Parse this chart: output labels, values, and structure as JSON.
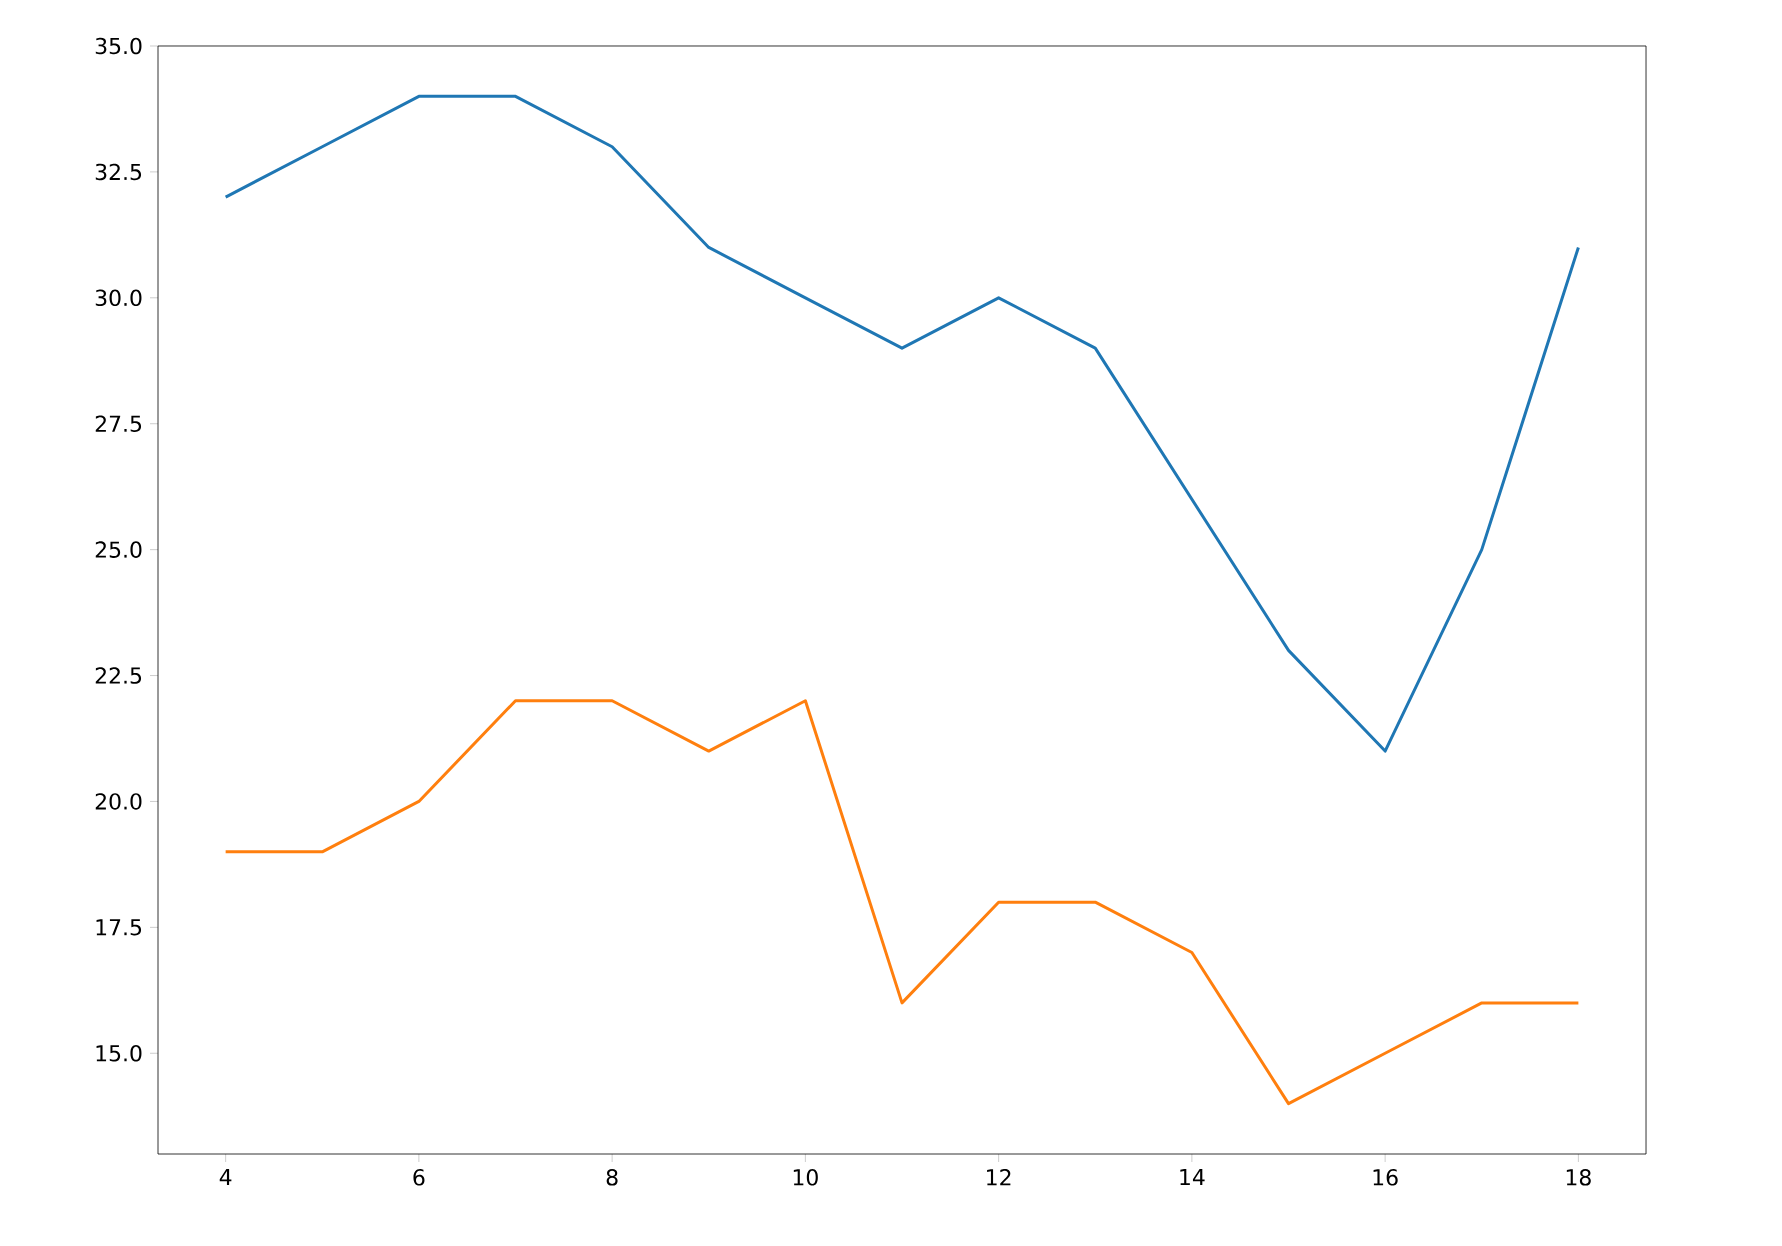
{
  "chart_data": {
    "type": "line",
    "x": [
      4,
      5,
      6,
      7,
      8,
      9,
      10,
      11,
      12,
      13,
      14,
      15,
      16,
      17,
      18
    ],
    "series": [
      {
        "color": "#1f77b4",
        "values": [
          32,
          33,
          34,
          34,
          33,
          31,
          30,
          29,
          30,
          29,
          26,
          23,
          21,
          25,
          31
        ]
      },
      {
        "color": "#ff7f0e",
        "values": [
          19,
          19,
          20,
          22,
          22,
          21,
          22,
          16,
          18,
          18,
          17,
          14,
          15,
          16,
          16
        ]
      }
    ],
    "xlim": [
      3.3,
      18.7
    ],
    "ylim": [
      13,
      35
    ],
    "xticks": [
      4,
      6,
      8,
      10,
      12,
      14,
      16,
      18
    ],
    "yticks": [
      {
        "value": 15,
        "label": "15.0"
      },
      {
        "value": 17.5,
        "label": "17.5"
      },
      {
        "value": 20,
        "label": "20.0"
      },
      {
        "value": 22.5,
        "label": "22.5"
      },
      {
        "value": 25,
        "label": "25.0"
      },
      {
        "value": 27.5,
        "label": "27.5"
      },
      {
        "value": 30,
        "label": "30.0"
      },
      {
        "value": 32.5,
        "label": "32.5"
      },
      {
        "value": 35,
        "label": "35.0"
      }
    ],
    "grid": false
  }
}
